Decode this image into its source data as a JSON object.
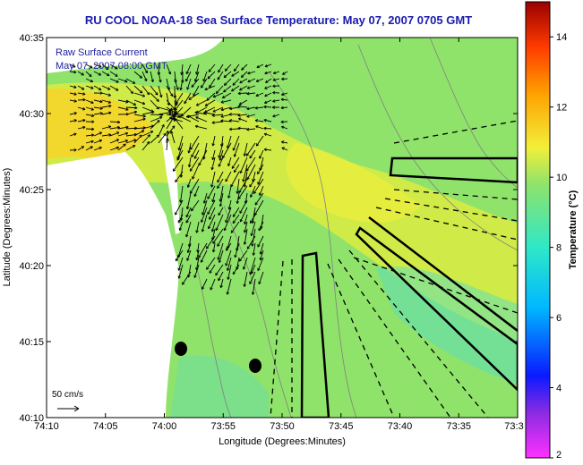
{
  "chart_data": {
    "type": "heatmap",
    "title": "RU COOL  NOAA-18  Sea Surface Temperature:  May 07, 2007 0705 GMT",
    "xlabel": "Longitude (Degrees:Minutes)",
    "ylabel": "Latitude (Degrees:Minutes)",
    "x_ticks": [
      "74:10",
      "74:05",
      "74:00",
      "73:55",
      "73:50",
      "73:45",
      "73:40",
      "73:35",
      "73:3"
    ],
    "y_ticks": [
      "40:35",
      "40:30",
      "40:25",
      "40:20",
      "40:15",
      "40:10"
    ],
    "colorbar": {
      "label": "Temperature (°C)",
      "range": [
        2,
        15
      ],
      "ticks": [
        "14",
        "12",
        "10",
        "8",
        "6",
        "4",
        "2"
      ]
    },
    "overlay": {
      "line1": "Raw Surface Current",
      "line2": "May 07, 2007 08:00 GMT"
    },
    "scale_label": "50 cm/s",
    "colors": {
      "water": "#8fe36a",
      "warm_water": "#f2ef3a",
      "land": "#ffffff",
      "title": "#1a1ab0"
    }
  }
}
